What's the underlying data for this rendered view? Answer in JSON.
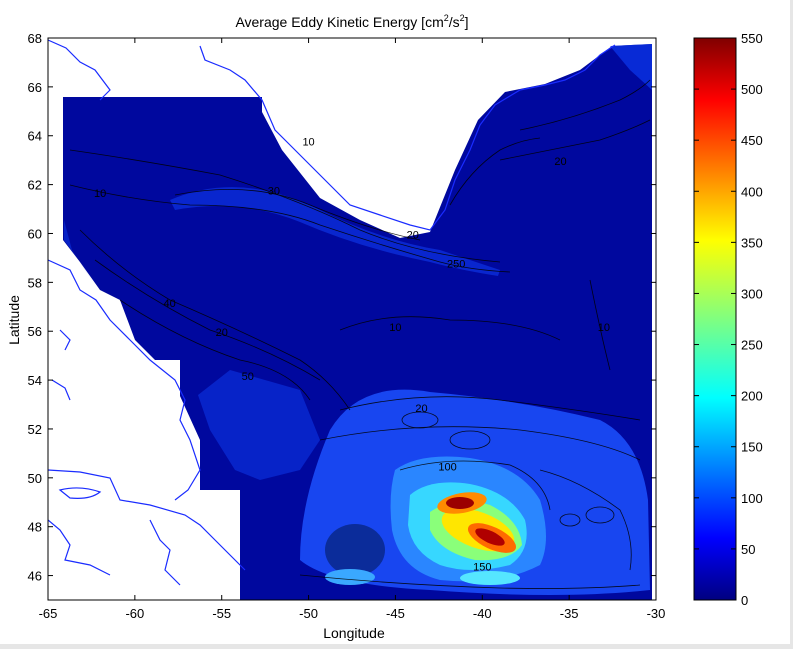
{
  "chart_data": {
    "type": "heatmap",
    "title": "Average Eddy Kinetic Energy [cm",
    "title_sup1": "2",
    "title_mid": "/s",
    "title_sup2": "2",
    "title_end": "]",
    "xlabel": "Longitude",
    "ylabel": "Latitude",
    "xlim": [
      -65,
      -30
    ],
    "ylim": [
      45,
      68
    ],
    "x_ticks": [
      "-65",
      "-60",
      "-55",
      "-50",
      "-45",
      "-40",
      "-35",
      "-30"
    ],
    "y_ticks": [
      "46",
      "48",
      "50",
      "52",
      "54",
      "56",
      "58",
      "60",
      "62",
      "64",
      "66",
      "68"
    ],
    "colorbar": {
      "range": [
        0,
        550
      ],
      "ticks": [
        "0",
        "50",
        "100",
        "150",
        "200",
        "250",
        "300",
        "350",
        "400",
        "450",
        "500",
        "550"
      ],
      "colormap": "jet"
    },
    "contour_levels_labeled": [
      "10",
      "20",
      "30",
      "40",
      "50",
      "100",
      "150",
      "200",
      "250"
    ],
    "hotspots": [
      {
        "lon": -41.3,
        "lat": 48.9,
        "value": 550
      },
      {
        "lon": -39.7,
        "lat": 47.9,
        "value": 520
      },
      {
        "lon": -41,
        "lat": 48.3,
        "value": 330
      },
      {
        "lon": -42.5,
        "lat": 49.5,
        "value": 180
      },
      {
        "lon": -40.5,
        "lat": 46.4,
        "value": 100
      }
    ],
    "contour_labels": [
      {
        "text": "10",
        "lon": -50,
        "lat": 63.6
      },
      {
        "text": "20",
        "lon": -44,
        "lat": 59.8
      },
      {
        "text": "30",
        "lon": -52,
        "lat": 61.6
      },
      {
        "text": "40",
        "lon": -58,
        "lat": 57
      },
      {
        "text": "20",
        "lon": -55,
        "lat": 55.8
      },
      {
        "text": "10",
        "lon": -45,
        "lat": 56
      },
      {
        "text": "50",
        "lon": -53.5,
        "lat": 54
      },
      {
        "text": "20",
        "lon": -43.5,
        "lat": 52.7
      },
      {
        "text": "100",
        "lon": -42,
        "lat": 50.3
      },
      {
        "text": "150",
        "lon": -40,
        "lat": 46.2
      },
      {
        "text": "20",
        "lon": -35.5,
        "lat": 62.8
      },
      {
        "text": "250",
        "lon": -41.5,
        "lat": 58.6
      },
      {
        "text": "10",
        "lon": -62,
        "lat": 61.5
      },
      {
        "text": "10",
        "lon": -33,
        "lat": 56
      }
    ]
  }
}
